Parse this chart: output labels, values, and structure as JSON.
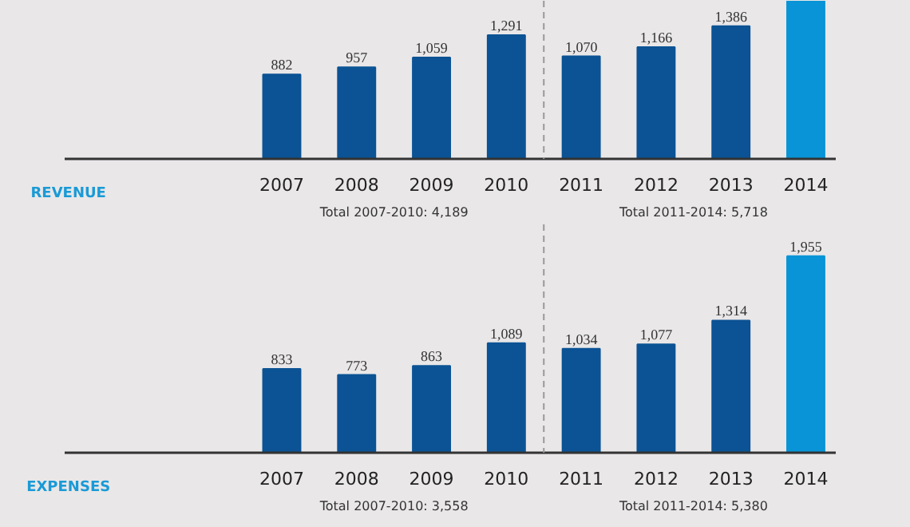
{
  "chart_data": [
    {
      "type": "bar",
      "title": "REVENUE",
      "x": [
        2007,
        2008,
        2009,
        2010,
        2011,
        2012,
        2013,
        2014
      ],
      "xlim": [
        2004.1,
        2014.4
      ],
      "xticks": [
        2007,
        2008,
        2009,
        2010,
        2011,
        2012,
        2013,
        2014
      ],
      "ylim": [
        0,
        1650
      ],
      "tick_labels": "x",
      "grid": false,
      "values": [
        882,
        957,
        1059,
        1291,
        1070,
        1166,
        1386,
        1650
      ],
      "colors": [
        "#0b5394",
        "#0b5394",
        "#0b5394",
        "#0b5394",
        "#0b5394",
        "#0b5394",
        "#0b5394",
        "#0894d6"
      ],
      "value_labels": [
        "882",
        "957",
        "1,059",
        "1,291",
        "1,070",
        "1,166",
        "1,386",
        null
      ],
      "ref_lines": [
        {
          "axis": "x",
          "value": 2010.5,
          "color": "#999999",
          "line_style": "dashed"
        }
      ],
      "annotations": [
        "Total 2007-2010: 4,189",
        "Total 2011-2014: 5,718"
      ]
    },
    {
      "type": "bar",
      "title": "EXPENSES",
      "x": [
        2007,
        2008,
        2009,
        2010,
        2011,
        2012,
        2013,
        2014
      ],
      "xlim": [
        2004.1,
        2014.4
      ],
      "xticks": [
        2007,
        2008,
        2009,
        2010,
        2011,
        2012,
        2013,
        2014
      ],
      "ylim": [
        0,
        2270
      ],
      "tick_labels": "x",
      "grid": false,
      "values": [
        833,
        773,
        863,
        1089,
        1034,
        1077,
        1314,
        1955
      ],
      "colors": [
        "#0b5394",
        "#0b5394",
        "#0b5394",
        "#0b5394",
        "#0b5394",
        "#0b5394",
        "#0b5394",
        "#0894d6"
      ],
      "value_labels": [
        "833",
        "773",
        "863",
        "1,089",
        "1,034",
        "1,077",
        "1,314",
        "1,955"
      ],
      "ref_lines": [
        {
          "axis": "x",
          "value": 2010.5,
          "color": "#999999",
          "line_style": "dashed"
        }
      ],
      "annotations": [
        "Total 2007-2010: 3,558",
        "Total 2011-2014: 5,380"
      ]
    }
  ]
}
